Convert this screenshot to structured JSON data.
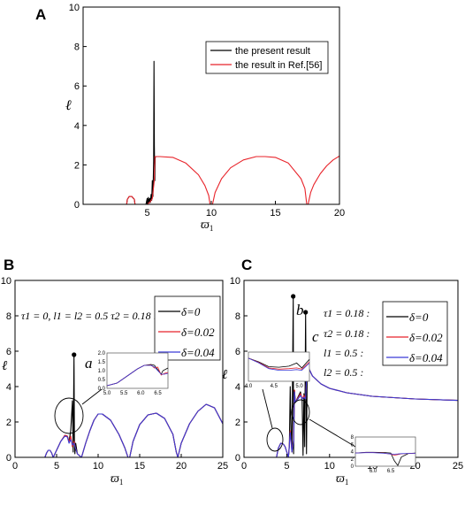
{
  "chart_data": [
    {
      "panel": "A",
      "type": "line",
      "xlabel": "ϖ1",
      "ylabel": "ℓ",
      "xlim": [
        0,
        20
      ],
      "ylim": [
        0,
        10
      ],
      "xticks": [
        5,
        10,
        15,
        20
      ],
      "yticks": [
        0,
        2,
        4,
        6,
        8,
        10
      ],
      "legend": {
        "placement": "top-right",
        "entries": [
          "the present result",
          "the result in Ref.[56]"
        ]
      },
      "series": [
        {
          "name": "the present result",
          "color": "#000000",
          "x": [
            -0.3,
            3.4,
            3.45,
            3.6,
            3.8,
            4.0,
            4.05,
            4.9,
            5.0,
            5.05,
            5.1,
            5.15,
            5.2,
            5.25,
            5.3,
            5.35,
            5.4,
            5.45,
            5.5,
            5.53,
            5.56,
            5.59,
            5.62,
            5.65
          ],
          "y": [
            0,
            0,
            0.25,
            0.4,
            0.4,
            0.25,
            0,
            0,
            0.3,
            0,
            0.35,
            0.1,
            0.3,
            0.1,
            0.5,
            0.2,
            1.2,
            0.4,
            2.2,
            7.25,
            3.0,
            1.2,
            2.35,
            2.4
          ]
        },
        {
          "name": "the result in Ref.[56]",
          "color": "#e8232a",
          "x": [
            -0.3,
            3.4,
            3.45,
            3.6,
            3.8,
            4.0,
            4.05,
            5.0,
            5.2,
            5.4,
            5.55,
            5.6,
            6.0,
            7.0,
            8.0,
            9.0,
            9.5,
            9.8,
            9.9,
            10.1,
            10.3,
            10.8,
            11.5,
            12.5,
            13.5,
            14.2,
            15.0,
            16.0,
            17.0,
            17.3,
            17.45,
            17.55,
            17.75,
            18.0,
            18.5,
            19.0,
            19.5,
            20.0
          ],
          "y": [
            0,
            0,
            0.25,
            0.4,
            0.4,
            0.25,
            0,
            0,
            0.1,
            0.3,
            1.2,
            2.42,
            2.42,
            2.38,
            2.1,
            1.5,
            0.95,
            0.45,
            0,
            0,
            0.6,
            1.3,
            1.85,
            2.25,
            2.42,
            2.42,
            2.38,
            2.1,
            1.3,
            0.8,
            0,
            0,
            0.6,
            1.0,
            1.55,
            1.95,
            2.25,
            2.45
          ]
        }
      ]
    },
    {
      "panel": "B",
      "type": "line",
      "xlabel": "ϖ1",
      "ylabel": "ℓ",
      "xlim": [
        0,
        25
      ],
      "ylim": [
        0,
        10
      ],
      "xticks": [
        0,
        5,
        10,
        15,
        20,
        25
      ],
      "yticks": [
        0,
        2,
        4,
        6,
        8,
        10
      ],
      "params": "τ1 = 0,  l1 = l2 = 0.5  τ2 = 0.18 :",
      "annotation": "a",
      "legend": {
        "placement": "top-right",
        "entries": [
          "δ=0",
          "δ=0.02",
          "δ=0.04"
        ]
      },
      "series": [
        {
          "name": "δ=0",
          "color": "#000000",
          "x": [
            0,
            3.6,
            3.8,
            4.0,
            4.2,
            4.4,
            4.6,
            5.0,
            5.5,
            6.0,
            6.3,
            6.5,
            6.7,
            6.9,
            7.0,
            7.1,
            7.15,
            7.2,
            7.3,
            7.5,
            8.0,
            8.5,
            9.0,
            9.5,
            10.0,
            10.5,
            11.5,
            12.5,
            13.2,
            13.6,
            13.8,
            14.2,
            15.0,
            16.0,
            17.0,
            18.0,
            19.0,
            19.4,
            19.6,
            20.0,
            21.0,
            22.0,
            23.0,
            24.0,
            25.0
          ],
          "y": [
            0,
            0,
            0.25,
            0.4,
            0.4,
            0.25,
            0,
            0.4,
            0.9,
            1.25,
            1.2,
            0.9,
            1.5,
            3.2,
            0.3,
            5.8,
            1.0,
            0.2,
            0.8,
            0.2,
            0,
            0.8,
            1.5,
            2.1,
            2.45,
            2.45,
            2.1,
            1.3,
            0.55,
            0,
            0,
            0.9,
            1.85,
            2.4,
            2.5,
            2.2,
            1.3,
            0.3,
            0,
            0.8,
            1.9,
            2.6,
            3.0,
            2.8,
            1.9
          ]
        },
        {
          "name": "δ=0.02",
          "color": "#e8232a",
          "x": [
            0,
            3.6,
            3.8,
            4.0,
            4.2,
            4.4,
            4.6,
            5.0,
            5.5,
            6.0,
            6.3,
            6.5,
            6.7,
            6.9,
            7.1,
            7.3,
            7.5,
            8.0,
            8.5,
            9.0,
            9.5,
            10.0,
            10.5,
            11.5,
            12.5,
            13.2,
            13.6,
            13.8,
            14.2,
            15.0,
            16.0,
            17.0,
            18.0,
            19.0,
            19.4,
            19.6,
            20.0,
            21.0,
            22.0,
            23.0,
            24.0,
            25.0
          ],
          "y": [
            0,
            0,
            0.25,
            0.4,
            0.4,
            0.25,
            0,
            0.4,
            0.9,
            1.25,
            1.2,
            0.85,
            1.2,
            0.6,
            0.9,
            0.5,
            0.2,
            0,
            0.8,
            1.5,
            2.1,
            2.45,
            2.45,
            2.1,
            1.3,
            0.55,
            0,
            0,
            0.9,
            1.85,
            2.4,
            2.5,
            2.2,
            1.3,
            0.3,
            0,
            0.8,
            1.9,
            2.6,
            3.0,
            2.8,
            1.9
          ]
        },
        {
          "name": "δ=0.04",
          "color": "#3b3bd6",
          "x": [
            0,
            3.6,
            3.8,
            4.0,
            4.2,
            4.4,
            4.6,
            5.0,
            5.5,
            6.0,
            6.3,
            6.5,
            6.7,
            6.9,
            7.1,
            7.3,
            7.5,
            8.0,
            8.5,
            9.0,
            9.5,
            10.0,
            10.5,
            11.5,
            12.5,
            13.2,
            13.6,
            13.8,
            14.2,
            15.0,
            16.0,
            17.0,
            18.0,
            19.0,
            19.4,
            19.6,
            20.0,
            21.0,
            22.0,
            23.0,
            24.0,
            25.0
          ],
          "y": [
            0,
            0,
            0.25,
            0.4,
            0.4,
            0.25,
            0,
            0.4,
            0.9,
            1.2,
            1.15,
            0.8,
            1.0,
            0.7,
            0.8,
            0.5,
            0.2,
            0,
            0.8,
            1.5,
            2.1,
            2.45,
            2.45,
            2.1,
            1.3,
            0.55,
            0,
            0,
            0.9,
            1.85,
            2.4,
            2.5,
            2.2,
            1.3,
            0.3,
            0,
            0.8,
            1.9,
            2.6,
            3.0,
            2.8,
            1.9
          ]
        }
      ],
      "inset": {
        "xlim": [
          5.0,
          6.8
        ],
        "ylim": [
          0,
          2.0
        ],
        "xticks": [
          "5.0",
          "5.5",
          "6.0",
          "6.5"
        ],
        "yticks": [
          "0.0",
          "0.5",
          "1.0",
          "1.5",
          "2.0"
        ],
        "series": [
          {
            "name": "δ=0",
            "color": "#000000",
            "x": [
              5.0,
              5.3,
              5.6,
              5.9,
              6.1,
              6.3,
              6.4,
              6.5,
              6.6,
              6.65,
              6.8
            ],
            "y": [
              0.15,
              0.3,
              0.7,
              1.1,
              1.3,
              1.35,
              1.3,
              1.05,
              0.8,
              1.0,
              1.15
            ]
          },
          {
            "name": "δ=0.02",
            "color": "#e8232a",
            "x": [
              5.0,
              5.3,
              5.6,
              5.9,
              6.1,
              6.3,
              6.4,
              6.5,
              6.6,
              6.7,
              6.8
            ],
            "y": [
              0.15,
              0.3,
              0.7,
              1.1,
              1.3,
              1.32,
              1.15,
              1.2,
              0.75,
              0.85,
              0.9
            ]
          },
          {
            "name": "δ=0.04",
            "color": "#3b3bd6",
            "x": [
              5.0,
              5.3,
              5.6,
              5.9,
              6.1,
              6.3,
              6.4,
              6.5,
              6.6,
              6.7,
              6.8
            ],
            "y": [
              0.15,
              0.3,
              0.7,
              1.1,
              1.3,
              1.3,
              1.2,
              1.0,
              0.8,
              0.8,
              0.85
            ]
          }
        ]
      }
    },
    {
      "panel": "C",
      "type": "line",
      "xlabel": "ϖ1",
      "ylabel": "ℓ",
      "xlim": [
        0,
        25
      ],
      "ylim": [
        0,
        10
      ],
      "xticks": [
        0,
        5,
        10,
        15,
        20,
        25
      ],
      "yticks": [
        0,
        2,
        4,
        6,
        8,
        10
      ],
      "params": [
        "τ1 = 0.18 :",
        "τ2 = 0.18 :",
        "l1 = 0.5 :",
        "l2 = 0.5 :"
      ],
      "annotations": [
        "b",
        "c"
      ],
      "legend": {
        "placement": "top-right",
        "entries": [
          "δ=0",
          "δ=0.02",
          "δ=0.04"
        ]
      },
      "series": [
        {
          "name": "δ=0",
          "color": "#000000",
          "x": [
            0,
            3.8,
            4.0,
            4.3,
            4.6,
            4.8,
            5.0,
            5.2,
            5.3,
            5.4,
            5.5,
            5.6,
            5.75,
            5.8,
            5.9,
            6.0,
            6.3,
            6.6,
            6.8,
            6.9,
            7.0,
            7.1,
            7.2,
            7.3,
            7.4,
            7.6,
            8.0,
            9.0,
            10.0,
            12.0,
            15.0,
            20.0,
            25.0
          ],
          "y": [
            0,
            0,
            0.5,
            0.8,
            0.75,
            0.6,
            0.3,
            0,
            0.6,
            4.0,
            1.5,
            0.3,
            9.1,
            0.2,
            3.8,
            3.1,
            3.4,
            3.7,
            3.2,
            0.1,
            3.6,
            0.6,
            8.2,
            0.2,
            5.5,
            5.0,
            4.6,
            4.15,
            3.9,
            3.65,
            3.45,
            3.3,
            3.22
          ]
        },
        {
          "name": "δ=0.02",
          "color": "#e8232a",
          "x": [
            0,
            3.8,
            4.0,
            4.3,
            4.6,
            4.8,
            5.0,
            5.2,
            5.4,
            5.6,
            5.8,
            5.9,
            6.0,
            6.3,
            6.6,
            6.8,
            7.0,
            7.2,
            7.4,
            7.6,
            8.0,
            9.0,
            10.0,
            12.0,
            15.0,
            20.0,
            25.0
          ],
          "y": [
            0,
            0,
            0.5,
            0.8,
            0.75,
            0.6,
            0.3,
            0,
            1.5,
            0.3,
            1.0,
            3.8,
            3.1,
            3.35,
            3.6,
            3.3,
            3.5,
            3.3,
            5.4,
            5.0,
            4.6,
            4.15,
            3.9,
            3.65,
            3.45,
            3.3,
            3.22
          ]
        },
        {
          "name": "δ=0.04",
          "color": "#3b3bd6",
          "x": [
            0,
            3.8,
            4.0,
            4.3,
            4.6,
            4.8,
            5.0,
            5.2,
            5.4,
            5.6,
            5.8,
            5.9,
            6.0,
            6.3,
            6.6,
            6.8,
            7.0,
            7.2,
            7.4,
            7.6,
            8.0,
            9.0,
            10.0,
            12.0,
            15.0,
            20.0,
            25.0
          ],
          "y": [
            0,
            0,
            0.5,
            0.8,
            0.75,
            0.6,
            0.3,
            0,
            1.4,
            0.3,
            0.9,
            3.7,
            3.1,
            3.3,
            3.5,
            3.3,
            3.4,
            3.3,
            5.3,
            5.0,
            4.6,
            4.15,
            3.9,
            3.65,
            3.45,
            3.3,
            3.22
          ]
        }
      ],
      "insets": [
        {
          "xlim": [
            4.0,
            5.2
          ],
          "ylim": [
            0,
            1.2
          ],
          "xticks": [
            "4.0",
            "4.5",
            "5.0"
          ],
          "yticks": [],
          "series": [
            {
              "name": "δ=0",
              "color": "#000000",
              "x": [
                4.0,
                4.2,
                4.4,
                4.6,
                4.8,
                4.95,
                5.05,
                5.2
              ],
              "y": [
                0.95,
                0.8,
                0.6,
                0.58,
                0.62,
                0.75,
                0.55,
                0.9
              ]
            },
            {
              "name": "δ=0.02",
              "color": "#e8232a",
              "x": [
                4.0,
                4.2,
                4.4,
                4.6,
                4.8,
                4.95,
                5.05,
                5.2
              ],
              "y": [
                0.95,
                0.78,
                0.55,
                0.5,
                0.52,
                0.55,
                0.5,
                0.8
              ]
            },
            {
              "name": "δ=0.04",
              "color": "#3b3bd6",
              "x": [
                4.0,
                4.2,
                4.4,
                4.6,
                4.8,
                4.95,
                5.05,
                5.2
              ],
              "y": [
                0.95,
                0.76,
                0.52,
                0.45,
                0.45,
                0.48,
                0.45,
                0.75
              ]
            }
          ]
        },
        {
          "xlim": [
            5.5,
            7.2
          ],
          "ylim": [
            0,
            8
          ],
          "xticks": [
            "6.0",
            "6.5"
          ],
          "yticks": [
            "0",
            "2",
            "4",
            "6",
            "8"
          ],
          "series": [
            {
              "name": "δ=0",
              "color": "#000000",
              "x": [
                5.5,
                5.8,
                6.0,
                6.3,
                6.5,
                6.6,
                6.7,
                6.8,
                7.0,
                7.2
              ],
              "y": [
                3.6,
                3.8,
                3.8,
                3.75,
                3.6,
                1.5,
                0.2,
                2.5,
                3.5,
                3.6
              ]
            },
            {
              "name": "δ=0.02",
              "color": "#e8232a",
              "x": [
                5.5,
                5.8,
                6.0,
                6.3,
                6.5,
                6.6,
                6.7,
                6.8,
                7.0,
                7.2
              ],
              "y": [
                3.6,
                3.75,
                3.75,
                3.6,
                3.3,
                3.0,
                3.2,
                3.4,
                3.5,
                3.55
              ]
            },
            {
              "name": "δ=0.04",
              "color": "#3b3bd6",
              "x": [
                5.5,
                5.8,
                6.0,
                6.3,
                6.5,
                6.6,
                6.7,
                6.8,
                7.0,
                7.2
              ],
              "y": [
                3.6,
                3.7,
                3.7,
                3.55,
                3.35,
                3.3,
                3.35,
                3.45,
                3.5,
                3.55
              ]
            }
          ]
        }
      ]
    }
  ],
  "panels": {
    "a": "A",
    "b": "B",
    "c": "C"
  },
  "labels": {
    "xlabel_symbol": "ϖ",
    "xlabel_sub": "1",
    "ylabel": "ℓ",
    "legend_a": [
      "the present result",
      "the result in Ref.[56]"
    ],
    "legend_bc": [
      "δ=0",
      "δ=0.02",
      "δ=0.04"
    ],
    "param_b": "τ1 = 0,  l1 = l2 = 0.5  τ2 = 0.18 :",
    "param_c": [
      "τ1 = 0.18 :",
      "τ2 = 0.18 :",
      "l1 = 0.5 :",
      "l2 = 0.5 :"
    ],
    "ann_a": "a",
    "ann_b": "b",
    "ann_c": "c"
  }
}
